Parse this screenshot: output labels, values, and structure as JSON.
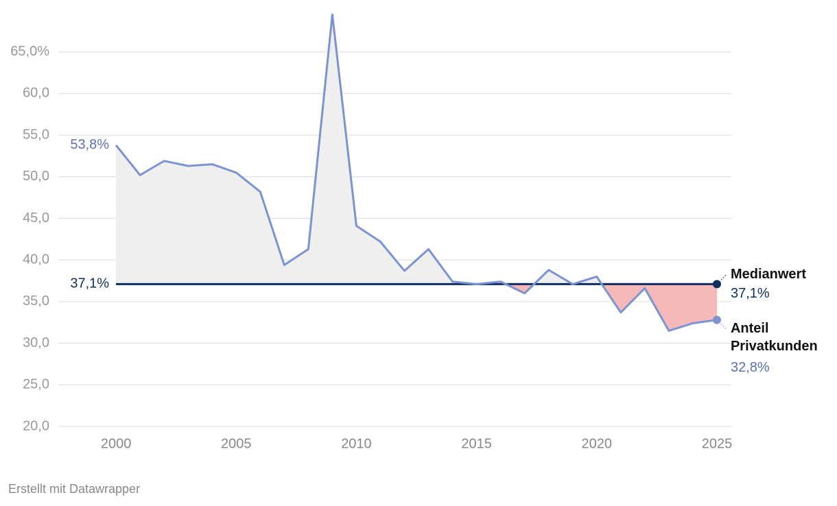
{
  "chart_data": {
    "type": "line",
    "categories": null,
    "x": [
      2000,
      2001,
      2002,
      2003,
      2004,
      2005,
      2006,
      2007,
      2008,
      2009,
      2010,
      2011,
      2012,
      2013,
      2014,
      2015,
      2016,
      2017,
      2018,
      2019,
      2020,
      2021,
      2022,
      2023,
      2024,
      2025
    ],
    "series": [
      {
        "name": "Anteil Privatkunden",
        "color": "#7b93d0",
        "values": [
          53.8,
          50.2,
          51.9,
          51.3,
          51.5,
          50.5,
          48.2,
          39.4,
          41.3,
          69.5,
          44.1,
          42.2,
          38.7,
          41.3,
          37.4,
          37.1,
          37.4,
          36.0,
          38.8,
          37.1,
          38.0,
          33.7,
          36.6,
          31.5,
          32.4,
          32.8
        ],
        "value_labels": [
          "53,8%",
          null,
          null,
          null,
          null,
          null,
          null,
          null,
          null,
          null,
          null,
          null,
          null,
          null,
          null,
          null,
          null,
          null,
          null,
          null,
          null,
          null,
          null,
          null,
          null,
          "32,8%"
        ]
      }
    ],
    "median": {
      "name": "Medianwert",
      "value": 37.1,
      "value_label": "37,1%",
      "color": "#0d2d5e"
    },
    "above_color": "#efefef",
    "below_color": "#f6b9b9",
    "xlim": [
      1997.6,
      2025.6
    ],
    "xticks": [
      2000,
      2005,
      2010,
      2015,
      2020,
      2025
    ],
    "ylim": [
      20,
      70
    ],
    "yticks": [
      {
        "value": 20,
        "label": "20,0"
      },
      {
        "value": 25,
        "label": "25,0"
      },
      {
        "value": 30,
        "label": "30,0"
      },
      {
        "value": 35,
        "label": "35,0"
      },
      {
        "value": 40,
        "label": "40,0"
      },
      {
        "value": 45,
        "label": "45,0"
      },
      {
        "value": 50,
        "label": "50,0"
      },
      {
        "value": 55,
        "label": "55,0"
      },
      {
        "value": 60,
        "label": "60,0"
      },
      {
        "value": 65,
        "label": "65,0%"
      }
    ],
    "grid": true,
    "credit": "Erstellt mit Datawrapper"
  }
}
